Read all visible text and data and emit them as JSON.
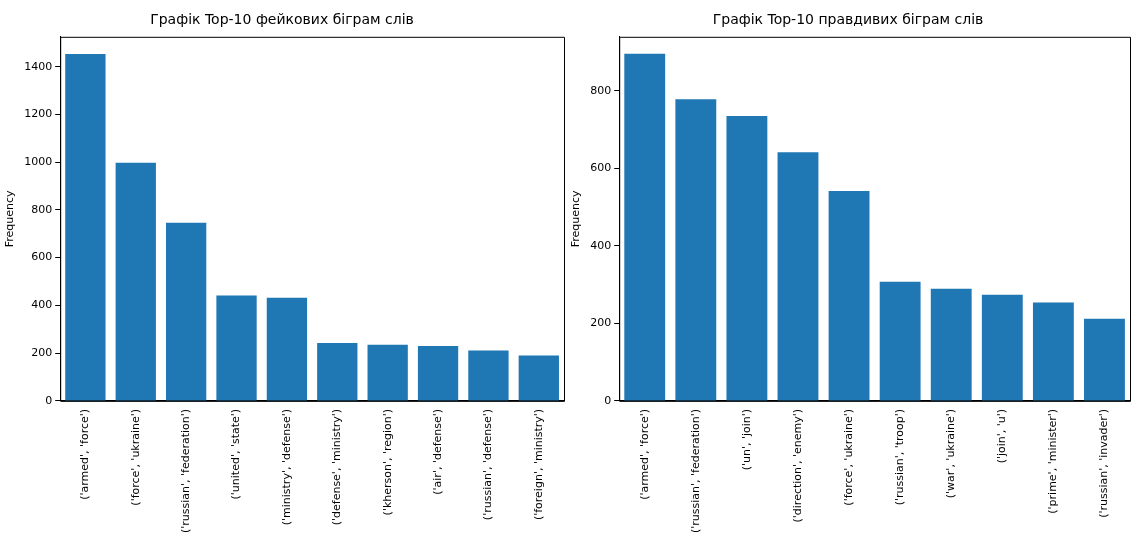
{
  "chart_data": [
    {
      "type": "bar",
      "title": "Графік Top-10 фейкових біграм слів",
      "ylabel": "Frequency",
      "categories": [
        "('armed', 'force')",
        "('force', 'ukraine')",
        "('russian', 'federation')",
        "('united', 'state')",
        "('ministry', 'defense')",
        "('defense', 'ministry')",
        "('kherson', 'region')",
        "('air', 'defense')",
        "('russian', 'defense')",
        "('foreign', 'ministry')"
      ],
      "values": [
        1453,
        997,
        746,
        441,
        432,
        242,
        235,
        230,
        211,
        190
      ],
      "color": "#1f77b4",
      "ylim": [
        0,
        1525
      ],
      "yticks": [
        0,
        200,
        400,
        600,
        800,
        1000,
        1200,
        1400
      ],
      "grid": false,
      "legend": false
    },
    {
      "type": "bar",
      "title": "Графік Top-10 правдивих біграм слів",
      "ylabel": "Frequency",
      "categories": [
        "('armed', 'force')",
        "('russian', 'federation')",
        "('un', 'join')",
        "('direction', 'enemy')",
        "('force', 'ukraine')",
        "('russian', 'troop')",
        "('war', 'ukraine')",
        "('join', 'u')",
        "('prime', 'minister')",
        "('russian', 'invader')"
      ],
      "values": [
        895,
        778,
        735,
        641,
        541,
        307,
        289,
        274,
        254,
        212
      ],
      "color": "#1f77b4",
      "ylim": [
        0,
        939
      ],
      "yticks": [
        0,
        200,
        400,
        600,
        800
      ],
      "grid": false,
      "legend": false
    }
  ]
}
